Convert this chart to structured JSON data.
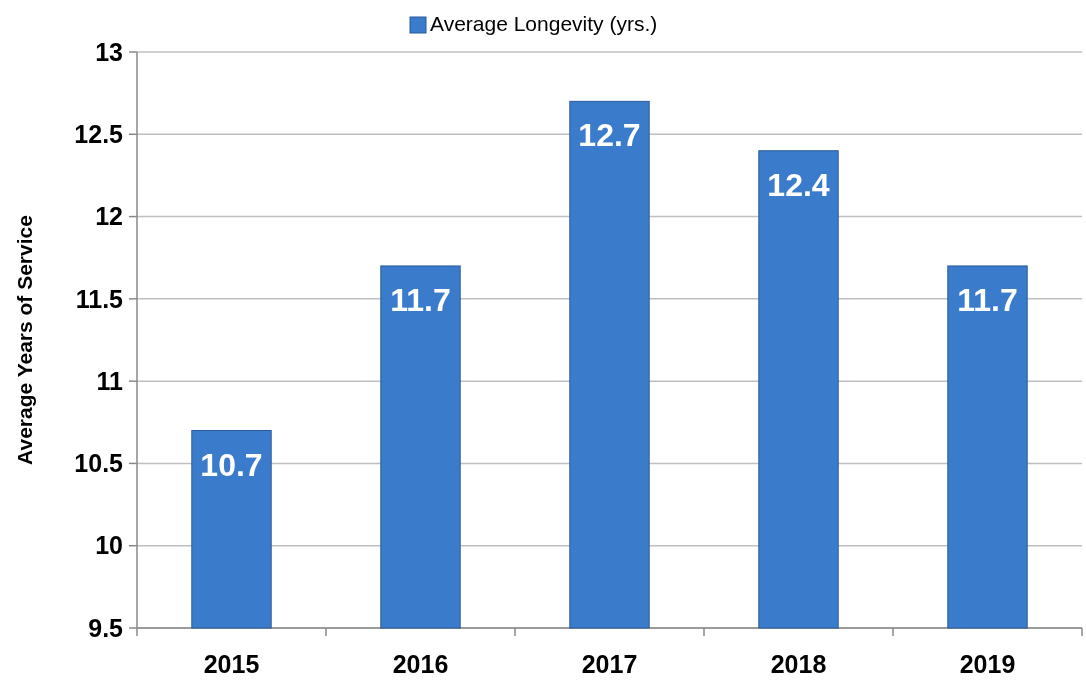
{
  "chart_data": {
    "type": "bar",
    "ylabel": "Average Years of Service",
    "categories": [
      "2015",
      "2016",
      "2017",
      "2018",
      "2019"
    ],
    "series": [
      {
        "name": "Average Longevity (yrs.)",
        "color": "#3b7bcc",
        "values": [
          10.7,
          11.7,
          12.7,
          12.4,
          11.7
        ]
      }
    ],
    "ylim": [
      9.5,
      13
    ],
    "yticks": [
      9.5,
      10,
      10.5,
      11,
      11.5,
      12,
      12.5,
      13
    ],
    "grid": "y",
    "legend": "top",
    "data_labels": true
  }
}
